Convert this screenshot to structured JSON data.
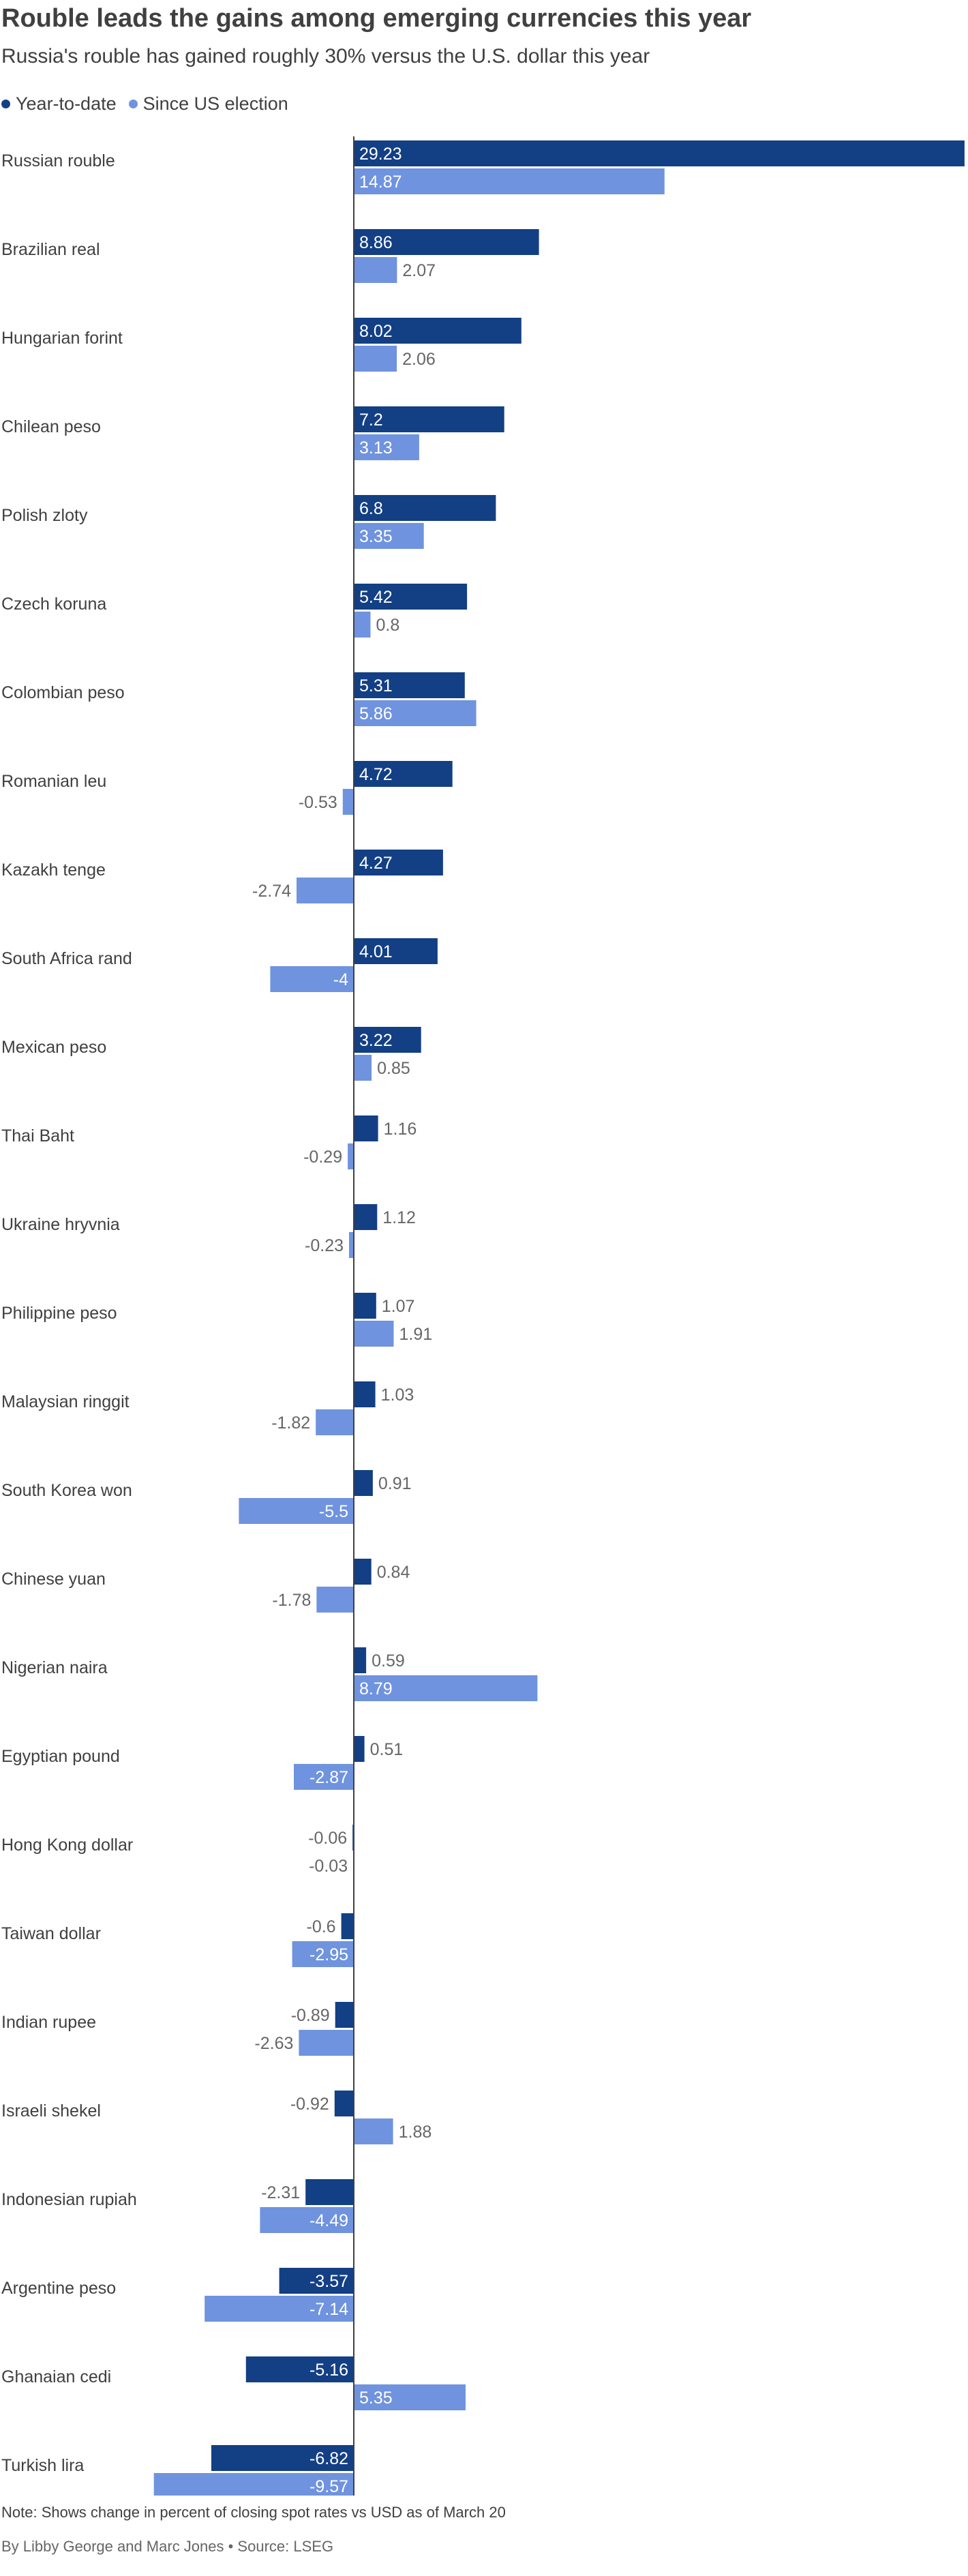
{
  "title": "Rouble leads the gains among emerging currencies this year",
  "subtitle": "Russia's rouble has gained roughly 30% versus the U.S. dollar this year",
  "legend": {
    "ytd_label": "Year-to-date",
    "election_label": "Since US election"
  },
  "colors": {
    "ytd": "#133f84",
    "election": "#6f93de",
    "axis": "#404040",
    "text": "#404040"
  },
  "note": "Note: Shows change in percent of closing spot rates vs USD as of March 20",
  "credits": "By Libby George and Marc Jones • Source: LSEG",
  "chart_data": {
    "type": "bar",
    "orientation": "horizontal",
    "categories": [
      "Russian rouble",
      "Brazilian real",
      "Hungarian forint",
      "Chilean peso",
      "Polish zloty",
      "Czech koruna",
      "Colombian peso",
      "Romanian leu",
      "Kazakh tenge",
      "South Africa rand",
      "Mexican peso",
      "Thai Baht",
      "Ukraine hryvnia",
      "Philippine peso",
      "Malaysian ringgit",
      "South Korea won",
      "Chinese yuan",
      "Nigerian naira",
      "Egyptian pound",
      "Hong Kong dollar",
      "Taiwan dollar",
      "Indian rupee",
      "Israeli shekel",
      "Indonesian rupiah",
      "Argentine peso",
      "Ghanaian cedi",
      "Turkish lira"
    ],
    "series": [
      {
        "name": "Year-to-date",
        "values": [
          29.23,
          8.86,
          8.02,
          7.2,
          6.8,
          5.42,
          5.31,
          4.72,
          4.27,
          4.01,
          3.22,
          1.16,
          1.12,
          1.07,
          1.03,
          0.91,
          0.84,
          0.59,
          0.51,
          -0.06,
          -0.6,
          -0.89,
          -0.92,
          -2.31,
          -3.57,
          -5.16,
          -6.82
        ]
      },
      {
        "name": "Since US election",
        "values": [
          14.87,
          2.07,
          2.06,
          3.13,
          3.35,
          0.8,
          5.86,
          -0.53,
          -2.74,
          -4,
          0.85,
          -0.29,
          -0.23,
          1.91,
          -1.82,
          -5.5,
          -1.78,
          8.79,
          -2.87,
          -0.03,
          -2.95,
          -2.63,
          1.88,
          -4.49,
          -7.14,
          5.35,
          -9.57
        ]
      }
    ],
    "xlim": [
      -9.57,
      29.23
    ],
    "grid": false,
    "legend_position": "top-left"
  }
}
